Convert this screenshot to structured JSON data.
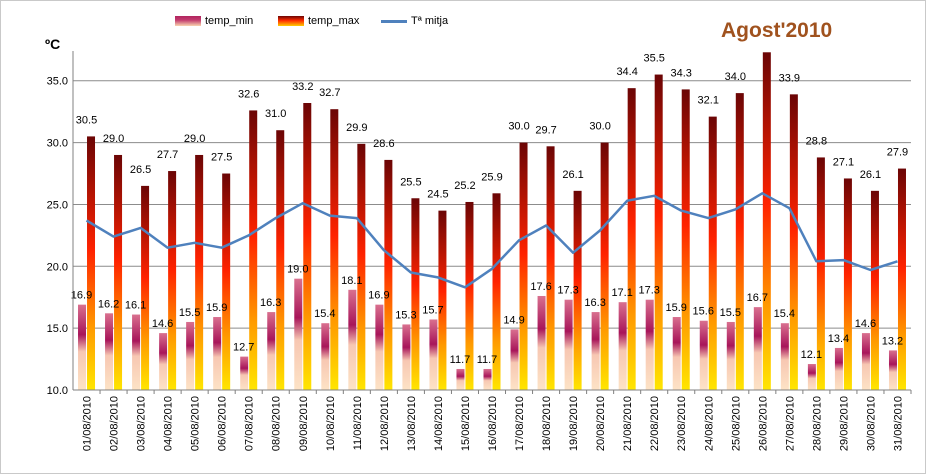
{
  "title": "Agost'2010",
  "y_unit": "ºC",
  "legend": {
    "min": "temp_min",
    "max": "temp_max",
    "avg": "Tª mitja"
  },
  "colors": {
    "avg_line": "#4f81bd",
    "title": "#a0521e",
    "grid": "#8c8c8c"
  },
  "chart_data": {
    "type": "bar",
    "title": "Agost'2010",
    "ylabel": "ºC",
    "xlabel": "",
    "ylim": [
      10.0,
      37.0
    ],
    "yticks": [
      "10.0",
      "15.0",
      "20.0",
      "25.0",
      "30.0",
      "35.0"
    ],
    "grid": true,
    "legend_position": "top-left",
    "categories": [
      "01/08/2010",
      "02/08/2010",
      "03/08/2010",
      "04/08/2010",
      "05/08/2010",
      "06/08/2010",
      "07/08/2010",
      "08/08/2010",
      "09/08/2010",
      "10/08/2010",
      "11/08/2010",
      "12/08/2010",
      "13/08/2010",
      "14/08/2010",
      "15/08/2010",
      "16/08/2010",
      "17/08/2010",
      "18/08/2010",
      "19/08/2010",
      "20/08/2010",
      "21/08/2010",
      "22/08/2010",
      "23/08/2010",
      "24/08/2010",
      "25/08/2010",
      "26/08/2010",
      "27/08/2010",
      "28/08/2010",
      "29/08/2010",
      "30/08/2010",
      "31/08/2010"
    ],
    "series": [
      {
        "name": "temp_min",
        "kind": "bar",
        "values": [
          16.9,
          16.2,
          16.1,
          14.6,
          15.5,
          15.9,
          12.7,
          16.3,
          19.0,
          15.4,
          18.1,
          16.9,
          15.3,
          15.7,
          11.7,
          11.7,
          14.9,
          17.6,
          17.3,
          16.3,
          17.1,
          17.3,
          15.9,
          15.6,
          15.5,
          16.7,
          15.4,
          12.1,
          13.4,
          14.6,
          13.2
        ],
        "labels": [
          "16.9",
          "16.2",
          "16.1",
          "14.6",
          "15.5",
          "15.9",
          "12.7",
          "16.3",
          "19.0",
          "15.4",
          "18.1",
          "16.9",
          "15.3",
          "15.7",
          "11.7",
          "11.7",
          "14.9",
          "17.6",
          "17.3",
          "16.3",
          "17.1",
          "17.3",
          "15.9",
          "15.6",
          "15.5",
          "16.7",
          "15.4",
          "12.1",
          "13.4",
          "14.6",
          "13.2"
        ]
      },
      {
        "name": "temp_max",
        "kind": "bar",
        "values": [
          30.5,
          29.0,
          26.5,
          27.7,
          29.0,
          27.5,
          32.6,
          31.0,
          33.2,
          32.7,
          29.9,
          28.6,
          25.5,
          24.5,
          25.2,
          25.9,
          30.0,
          29.7,
          26.1,
          30.0,
          34.4,
          35.5,
          34.3,
          32.1,
          34.0,
          37.3,
          33.9,
          28.8,
          27.1,
          26.1,
          27.9
        ],
        "labels": [
          "30.5",
          "29.0",
          "26.5",
          "27.7",
          "29.0",
          "27.5",
          "32.6",
          "31.0",
          "33.2",
          "32.7",
          "29.9",
          "28.6",
          "25.5",
          "24.5",
          "25.2",
          "25.9",
          "30.0",
          "29.7",
          "26.1",
          "30.0",
          "34.4",
          "35.5",
          "34.3",
          "32.1",
          "34.0",
          "",
          "33.9",
          "28.8",
          "27.1",
          "26.1",
          "27.9"
        ]
      },
      {
        "name": "Tª mitja",
        "kind": "line",
        "values": [
          23.7,
          22.4,
          23.1,
          21.5,
          21.9,
          21.5,
          22.5,
          23.9,
          25.1,
          24.1,
          23.9,
          21.3,
          19.5,
          19.1,
          18.3,
          19.8,
          22.1,
          23.3,
          21.1,
          22.9,
          25.3,
          25.7,
          24.5,
          23.9,
          24.6,
          25.9,
          24.7,
          20.4,
          20.5,
          19.7,
          20.4
        ]
      }
    ]
  }
}
